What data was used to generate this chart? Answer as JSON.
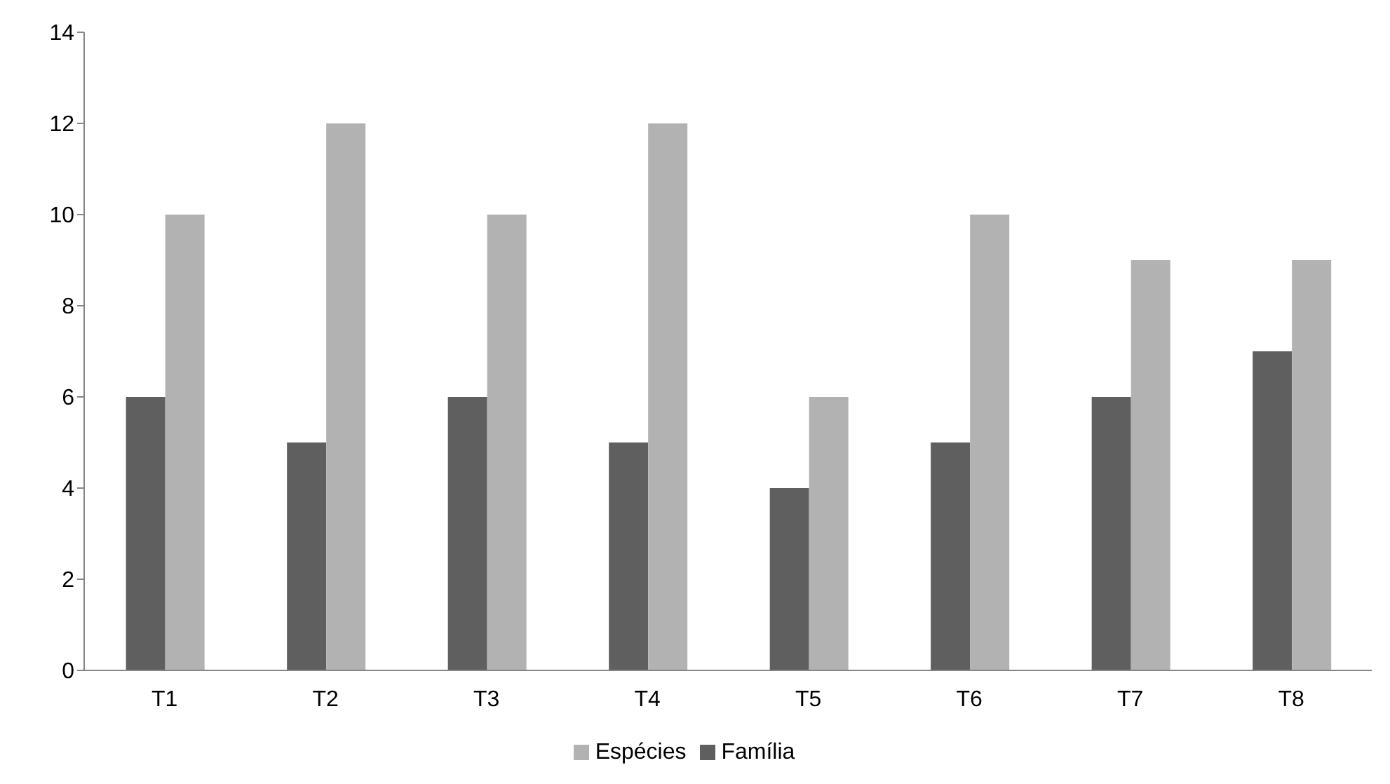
{
  "chart_data": {
    "type": "bar",
    "categories": [
      "T1",
      "T2",
      "T3",
      "T4",
      "T5",
      "T6",
      "T7",
      "T8"
    ],
    "series": [
      {
        "name": "Família",
        "color": "#5f5f5f",
        "values": [
          6,
          5,
          6,
          5,
          4,
          5,
          6,
          7
        ]
      },
      {
        "name": "Espécies",
        "color": "#b2b2b2",
        "values": [
          10,
          12,
          10,
          12,
          6,
          10,
          9,
          9
        ]
      }
    ],
    "ylim": [
      0,
      14
    ],
    "yticks": [
      0,
      2,
      4,
      6,
      8,
      10,
      12,
      14
    ],
    "grid": false,
    "legend": "bottom"
  }
}
